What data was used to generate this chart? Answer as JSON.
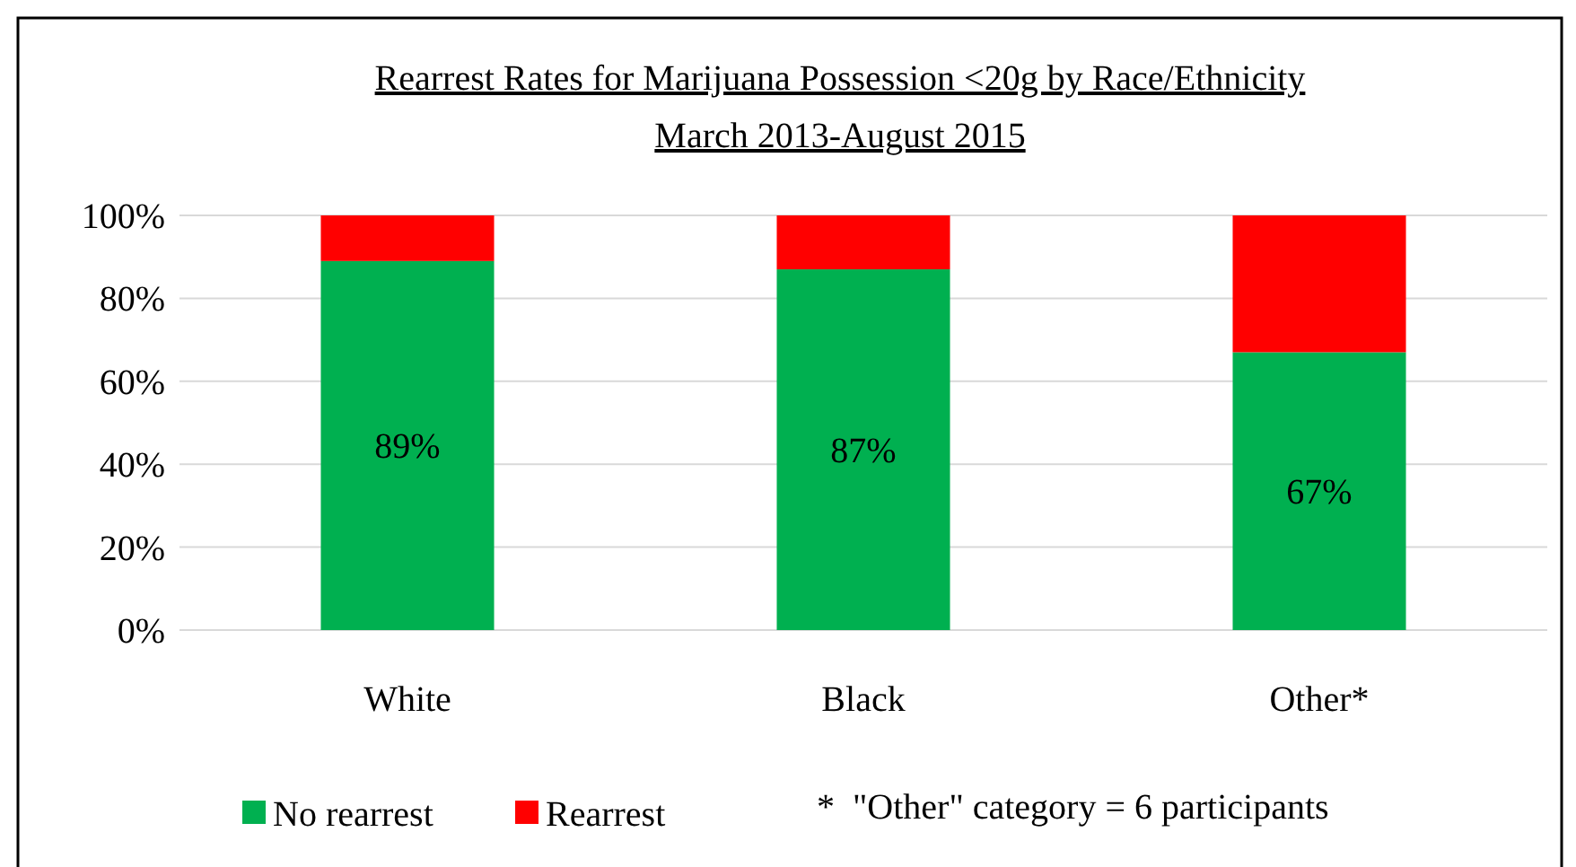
{
  "chart_data": {
    "type": "bar",
    "stacked": true,
    "title": "Rearrest Rates for Marijuana Possession <20g by Race/Ethnicity",
    "subtitle": "March 2013-August 2015",
    "categories": [
      "White",
      "Black",
      "Other*"
    ],
    "series": [
      {
        "name": "No rearrest",
        "color": "#00b050",
        "values": [
          89,
          87,
          67
        ],
        "value_labels": [
          "89%",
          "87%",
          "67%"
        ]
      },
      {
        "name": "Rearrest",
        "color": "#ff0000",
        "values": [
          11,
          13,
          33
        ]
      }
    ],
    "ylim": [
      0,
      100
    ],
    "yticks": [
      {
        "value": 0,
        "label": "0%"
      },
      {
        "value": 20,
        "label": "20%"
      },
      {
        "value": 40,
        "label": "40%"
      },
      {
        "value": 60,
        "label": "60%"
      },
      {
        "value": 80,
        "label": "80%"
      },
      {
        "value": 100,
        "label": "100%"
      }
    ],
    "grid": "y",
    "legend": "bottom left",
    "annotations": [
      "*  \"Other\" category = 6 participants"
    ]
  }
}
